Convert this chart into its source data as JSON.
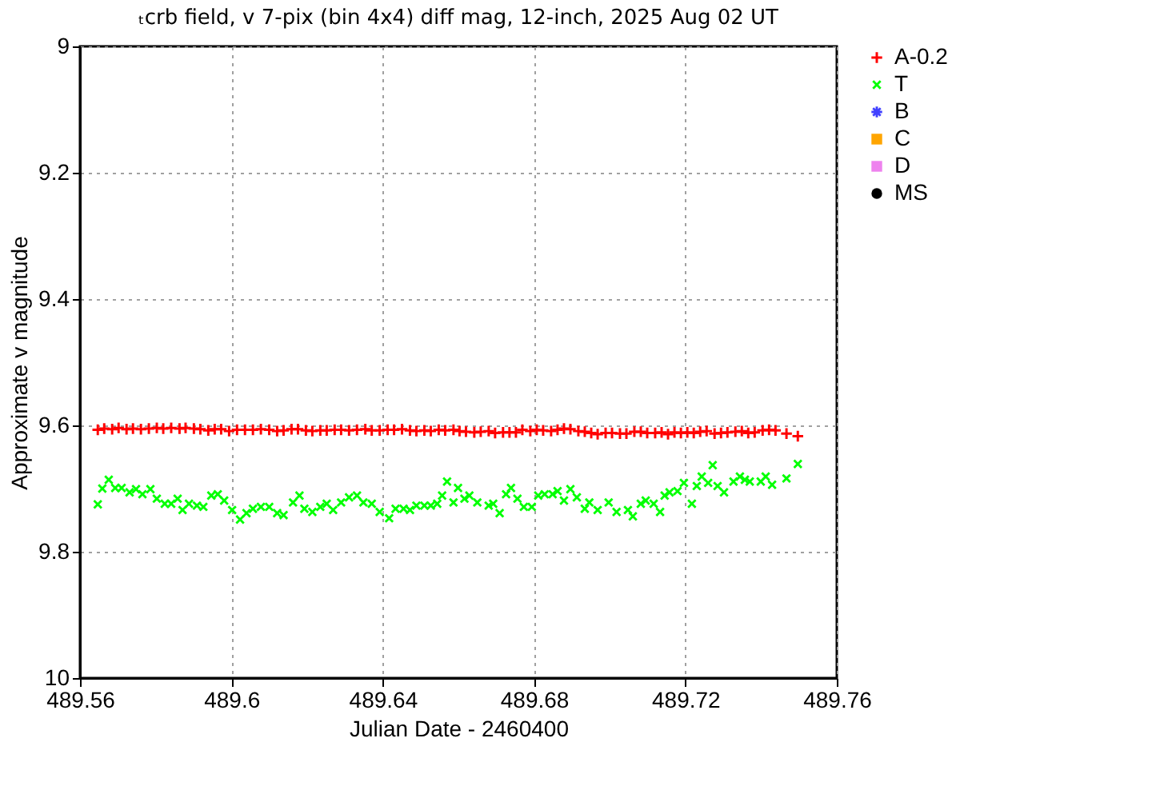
{
  "chart_data": {
    "type": "scatter",
    "title": "ₜcrb field, v 7-pix (bin 4x4) diff mag, 12-inch, 2025 Aug 02 UT",
    "xlabel": "Julian Date - 2460400",
    "ylabel": "Approximate v magnitude",
    "xlim": [
      489.56,
      489.76
    ],
    "xticks": [
      489.56,
      489.6,
      489.64,
      489.68,
      489.72,
      489.76
    ],
    "ylim": [
      10,
      9
    ],
    "yticks": [
      9,
      9.2,
      9.4,
      9.6,
      9.8,
      10
    ],
    "grid": true,
    "legend": "top right",
    "series": [
      {
        "name": "A-0.2",
        "color": "#ff0000",
        "marker": "cross",
        "x": [
          489.5647,
          489.5664,
          489.5685,
          489.5702,
          489.5723,
          489.574,
          489.5761,
          489.5782,
          489.5803,
          489.582,
          489.5841,
          489.5863,
          489.5879,
          489.5901,
          489.5918,
          489.5939,
          489.5956,
          489.5973,
          489.5994,
          489.6015,
          489.6036,
          489.6057,
          489.6078,
          489.61,
          489.6121,
          489.6138,
          489.6159,
          489.6176,
          489.6197,
          489.6214,
          489.6235,
          489.6252,
          489.6273,
          489.629,
          489.6311,
          489.6332,
          489.6354,
          489.6371,
          489.6392,
          489.6413,
          489.643,
          489.6451,
          489.6472,
          489.6489,
          489.651,
          489.6527,
          489.6548,
          489.6565,
          489.6587,
          489.6603,
          489.662,
          489.6642,
          489.6659,
          489.668,
          489.6697,
          489.6718,
          489.6735,
          489.6752,
          489.6769,
          489.679,
          489.6807,
          489.6824,
          489.6845,
          489.6862,
          489.6879,
          489.6896,
          489.6917,
          489.6934,
          489.6951,
          489.6968,
          489.6989,
          489.7006,
          489.7027,
          489.7044,
          489.7065,
          489.7082,
          489.7099,
          489.712,
          489.7137,
          489.7154,
          489.7171,
          489.7188,
          489.7205,
          489.7222,
          489.7239,
          489.7256,
          489.7277,
          489.7294,
          489.7311,
          489.7332,
          489.7349,
          489.7366,
          489.7383,
          489.7404,
          489.7421,
          489.7438,
          489.7467,
          489.7497
        ],
        "values": [
          9.607,
          9.605,
          9.606,
          9.604,
          9.606,
          9.605,
          9.606,
          9.605,
          9.604,
          9.605,
          9.604,
          9.605,
          9.604,
          9.605,
          9.606,
          9.608,
          9.606,
          9.606,
          9.609,
          9.607,
          9.607,
          9.607,
          9.606,
          9.607,
          9.609,
          9.608,
          9.606,
          9.606,
          9.608,
          9.609,
          9.608,
          9.608,
          9.607,
          9.607,
          9.608,
          9.607,
          9.606,
          9.608,
          9.608,
          9.607,
          9.607,
          9.606,
          9.608,
          9.609,
          9.608,
          9.609,
          9.607,
          9.608,
          9.607,
          9.609,
          9.61,
          9.611,
          9.61,
          9.609,
          9.612,
          9.611,
          9.611,
          9.611,
          9.607,
          9.609,
          9.607,
          9.608,
          9.609,
          9.607,
          9.605,
          9.606,
          9.609,
          9.61,
          9.612,
          9.614,
          9.612,
          9.612,
          9.613,
          9.613,
          9.61,
          9.61,
          9.612,
          9.612,
          9.611,
          9.614,
          9.611,
          9.612,
          9.611,
          9.612,
          9.61,
          9.609,
          9.613,
          9.612,
          9.611,
          9.61,
          9.609,
          9.612,
          9.611,
          9.608,
          9.607,
          9.608,
          9.613,
          9.617
        ]
      },
      {
        "name": "T",
        "color": "#00ff00",
        "marker": "cross",
        "x": [
          489.5647,
          489.5659,
          489.5676,
          489.5693,
          489.571,
          489.5731,
          489.5748,
          489.5765,
          489.5786,
          489.5803,
          489.5824,
          489.5841,
          489.5858,
          489.5871,
          489.5888,
          489.5909,
          489.5926,
          489.5947,
          489.5964,
          489.5981,
          489.6002,
          489.6023,
          489.604,
          489.6057,
          489.6078,
          489.61,
          489.6121,
          489.6138,
          489.6163,
          489.618,
          489.6193,
          489.6214,
          489.6235,
          489.6252,
          489.6269,
          489.629,
          489.6311,
          489.6332,
          489.6349,
          489.6371,
          489.6392,
          489.6417,
          489.6434,
          489.6455,
          489.6472,
          489.6489,
          489.651,
          489.6527,
          489.6544,
          489.6557,
          489.657,
          489.6587,
          489.6599,
          489.6616,
          489.6629,
          489.665,
          489.668,
          489.6692,
          489.6709,
          489.6726,
          489.6739,
          489.6756,
          489.6773,
          489.6794,
          489.6811,
          489.6828,
          489.6849,
          489.6862,
          489.6879,
          489.6896,
          489.6913,
          489.6934,
          489.6946,
          489.6968,
          489.6997,
          489.7018,
          489.7048,
          489.7061,
          489.7082,
          489.7095,
          489.7116,
          489.7133,
          489.7145,
          489.7158,
          489.7179,
          489.7196,
          489.7217,
          489.723,
          489.7243,
          489.726,
          489.7272,
          489.7285,
          489.7302,
          489.7327,
          489.7344,
          489.7357,
          489.737,
          489.7399,
          489.7412,
          489.7429,
          489.7467,
          489.7497
        ],
        "values": [
          9.725,
          9.7,
          9.686,
          9.699,
          9.699,
          9.706,
          9.701,
          9.709,
          9.701,
          9.716,
          9.724,
          9.724,
          9.716,
          9.734,
          9.724,
          9.727,
          9.729,
          9.711,
          9.709,
          9.719,
          9.734,
          9.749,
          9.739,
          9.732,
          9.729,
          9.729,
          9.739,
          9.742,
          9.722,
          9.711,
          9.732,
          9.737,
          9.729,
          9.724,
          9.734,
          9.722,
          9.714,
          9.711,
          9.722,
          9.724,
          9.737,
          9.747,
          9.732,
          9.732,
          9.734,
          9.727,
          9.727,
          9.727,
          9.724,
          9.711,
          9.689,
          9.722,
          9.699,
          9.716,
          9.711,
          9.722,
          9.727,
          9.724,
          9.739,
          9.709,
          9.699,
          9.716,
          9.729,
          9.729,
          9.711,
          9.709,
          9.709,
          9.704,
          9.719,
          9.701,
          9.714,
          9.732,
          9.722,
          9.734,
          9.722,
          9.737,
          9.734,
          9.744,
          9.724,
          9.719,
          9.724,
          9.737,
          9.711,
          9.706,
          9.704,
          9.691,
          9.724,
          9.696,
          9.681,
          9.691,
          9.663,
          9.696,
          9.706,
          9.689,
          9.681,
          9.686,
          9.689,
          9.689,
          9.681,
          9.694,
          9.684,
          9.661
        ]
      },
      {
        "name": "B",
        "color": "#4040ff",
        "marker": "star"
      },
      {
        "name": "C",
        "color": "#ffa500",
        "marker": "square"
      },
      {
        "name": "D",
        "color": "#ee82ee",
        "marker": "square"
      },
      {
        "name": "MS",
        "color": "#000000",
        "marker": "circle"
      }
    ]
  }
}
